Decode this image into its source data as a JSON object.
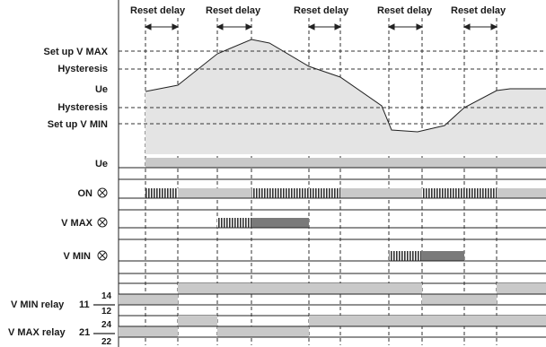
{
  "top_labels": [
    "Reset delay",
    "Reset delay",
    "Reset delay",
    "Reset delay",
    "Reset delay"
  ],
  "level_labels": {
    "vmax": "Set up V MAX",
    "hyst_top": "Hysteresis",
    "ue": "Ue",
    "hyst_bottom": "Hysteresis",
    "vmin": "Set up V MIN"
  },
  "row_labels": {
    "ue": "Ue",
    "on": "ON",
    "vmax": "V MAX",
    "vmin": "V MIN"
  },
  "relay_labels": {
    "vmin_relay": "V MIN relay",
    "vmin_num": "11",
    "vmax_relay": "V MAX relay",
    "vmax_num": "21",
    "c14": "14",
    "c12": "12",
    "c24": "24",
    "c22": "22"
  }
}
